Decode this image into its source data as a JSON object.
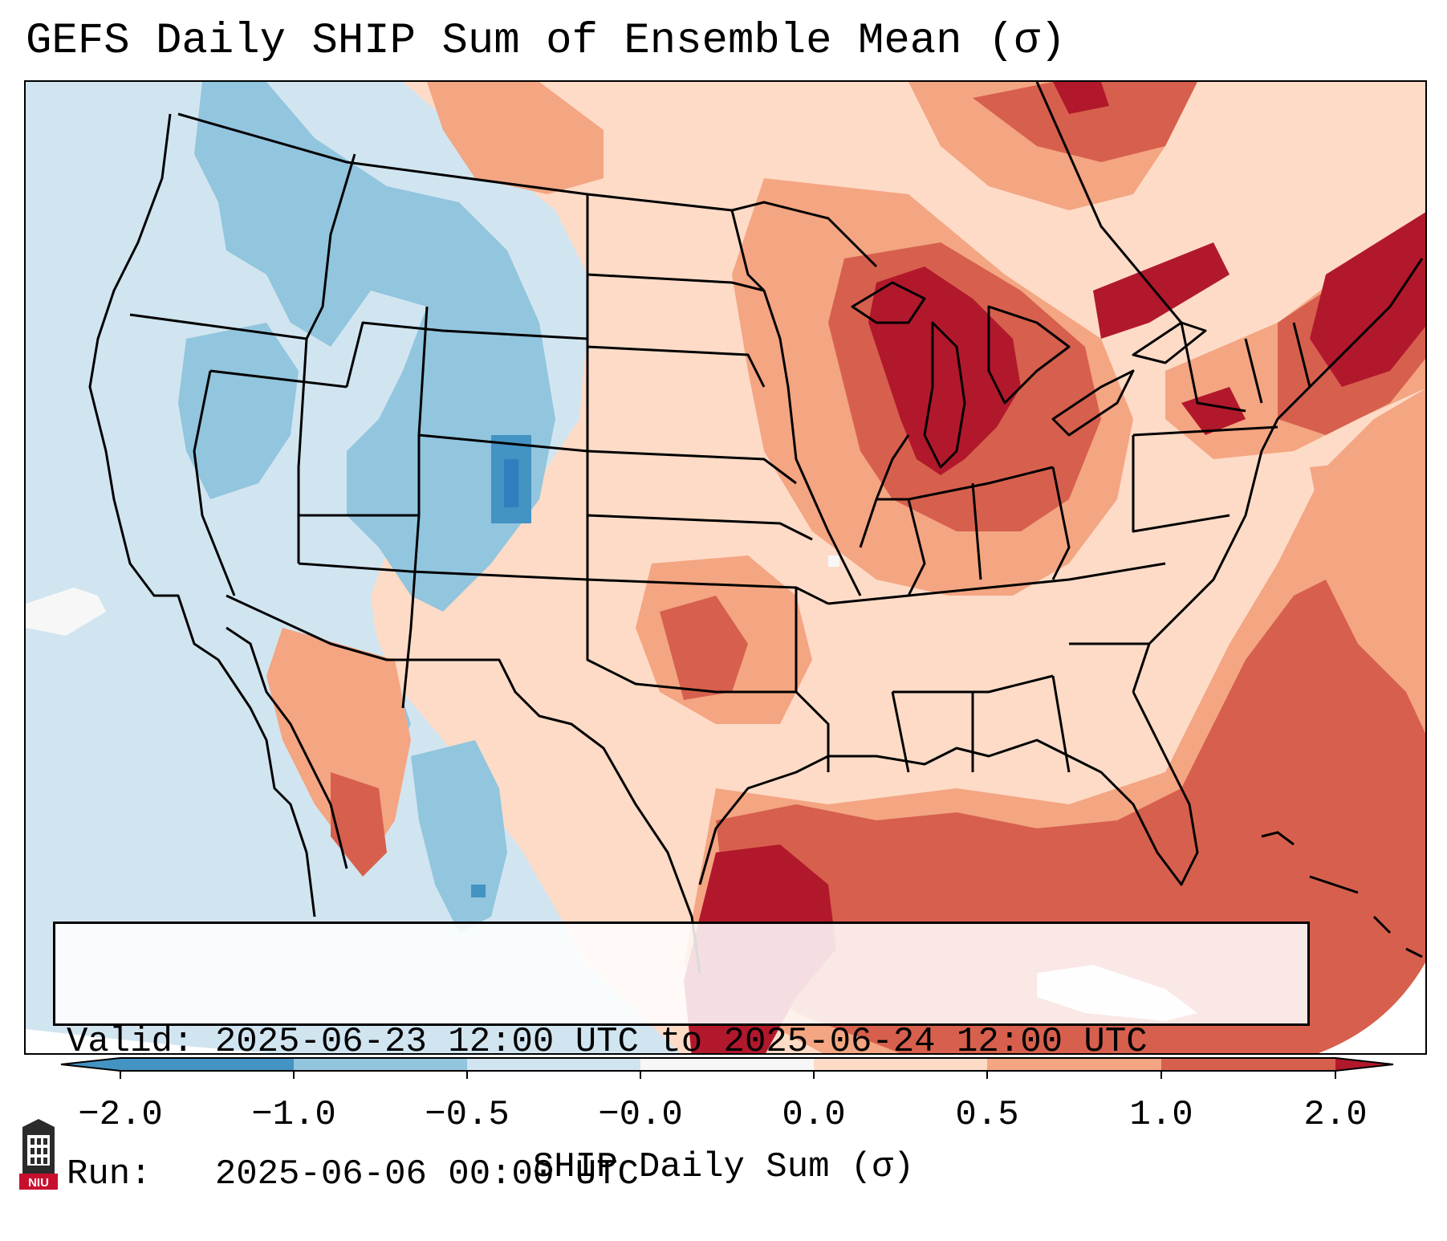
{
  "title": "GEFS Daily SHIP Sum of Ensemble Mean (σ)",
  "info": {
    "valid_label": "Valid:",
    "valid_value": "2025-06-23 12:00 UTC to 2025-06-24 12:00 UTC",
    "run_label": "Run:",
    "run_value": "2025-06-06 00:00 UTC"
  },
  "colorbar": {
    "label": "SHIP Daily Sum (σ)",
    "ticks": [
      "−2.0",
      "−1.0",
      "−0.5",
      "−0.0",
      "0.0",
      "0.5",
      "1.0",
      "2.0"
    ],
    "colors": [
      "#4393c3",
      "#92c5de",
      "#d1e5f0",
      "#f7f7f7",
      "#fddbc7",
      "#f4a582",
      "#d6604d",
      "#b2182b"
    ],
    "under_color": "#2166ac",
    "over_color": "#67001f"
  },
  "map": {
    "region": "Contiguous United States",
    "field_colors": {
      "ocean_west": "#d1e5f0",
      "neg_light": "#d1e5f0",
      "neg_mid": "#92c5de",
      "neg_strong": "#4393c3",
      "pos_light": "#fddbc7",
      "pos_mid": "#f4a582",
      "pos_strong": "#d6604d",
      "pos_max": "#b2182b"
    }
  },
  "logo": {
    "text": "NIU",
    "icon": "niu-logo-icon"
  }
}
